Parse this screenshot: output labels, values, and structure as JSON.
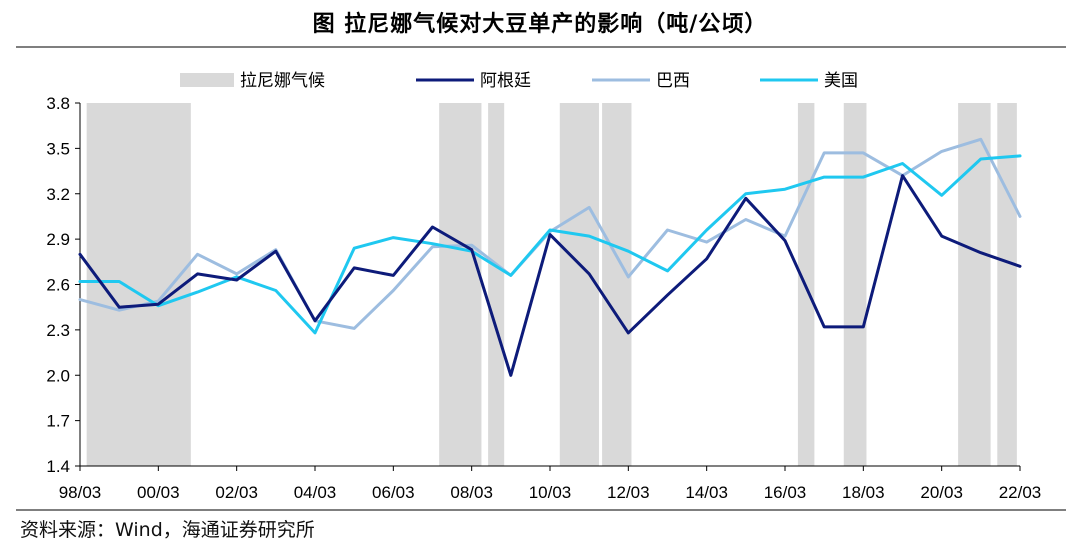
{
  "title": "图  拉尼娜气候对大豆单产的影响（吨/公顷）",
  "source": "资料来源：Wind，海通证券研究所",
  "chart_data": {
    "type": "line",
    "title": "图  拉尼娜气候对大豆单产的影响（吨/公顷）",
    "xlabel": "",
    "ylabel": "",
    "ylim": [
      1.4,
      3.8
    ],
    "yticks": [
      1.4,
      1.7,
      2.0,
      2.3,
      2.6,
      2.9,
      3.2,
      3.5,
      3.8
    ],
    "ytick_labels": [
      "1.4",
      "1.7",
      "2.0",
      "2.3",
      "2.6",
      "2.9",
      "3.2",
      "3.5",
      "3.8"
    ],
    "xlim": [
      1998.25,
      2022.25
    ],
    "xticks": [
      1998.25,
      2000.25,
      2002.25,
      2004.25,
      2006.25,
      2008.25,
      2010.25,
      2012.25,
      2014.25,
      2016.25,
      2018.25,
      2020.25,
      2022.25
    ],
    "xtick_labels": [
      "98/03",
      "00/03",
      "02/03",
      "04/03",
      "06/03",
      "08/03",
      "10/03",
      "12/03",
      "14/03",
      "16/03",
      "18/03",
      "20/03",
      "22/03"
    ],
    "legend_position": "top",
    "legend": [
      "拉尼娜气候",
      "阿根廷",
      "巴西",
      "美国"
    ],
    "shaded_periods_name": "拉尼娜气候",
    "shaded_periods": [
      [
        1998.42,
        2001.08
      ],
      [
        2007.42,
        2008.5
      ],
      [
        2008.67,
        2009.08
      ],
      [
        2010.5,
        2011.5
      ],
      [
        2011.58,
        2012.33
      ],
      [
        2016.58,
        2017.0
      ],
      [
        2017.75,
        2018.33
      ],
      [
        2020.67,
        2021.5
      ],
      [
        2021.67,
        2022.17
      ]
    ],
    "series": [
      {
        "name": "阿根廷",
        "color": "#0d1b7a",
        "x": [
          1998.25,
          1999.25,
          2000.25,
          2001.25,
          2002.25,
          2003.25,
          2004.25,
          2005.25,
          2006.25,
          2007.25,
          2008.25,
          2009.25,
          2010.25,
          2011.25,
          2012.25,
          2013.25,
          2014.25,
          2015.25,
          2016.25,
          2017.25,
          2018.25,
          2019.25,
          2020.25,
          2021.25,
          2022.25
        ],
        "values": [
          2.8,
          2.45,
          2.47,
          2.67,
          2.63,
          2.82,
          2.36,
          2.71,
          2.66,
          2.98,
          2.83,
          2.0,
          2.93,
          2.67,
          2.28,
          2.53,
          2.77,
          3.17,
          2.89,
          2.32,
          2.32,
          3.32,
          2.92,
          2.81,
          2.72
        ]
      },
      {
        "name": "巴西",
        "color": "#9dbde0",
        "x": [
          1998.25,
          1999.25,
          2000.25,
          2001.25,
          2002.25,
          2003.25,
          2004.25,
          2005.25,
          2006.25,
          2007.25,
          2008.25,
          2009.25,
          2010.25,
          2011.25,
          2012.25,
          2013.25,
          2014.25,
          2015.25,
          2016.25,
          2017.25,
          2018.25,
          2019.25,
          2020.25,
          2021.25,
          2022.25
        ],
        "values": [
          2.5,
          2.43,
          2.49,
          2.8,
          2.67,
          2.83,
          2.36,
          2.31,
          2.56,
          2.85,
          2.86,
          2.66,
          2.95,
          3.11,
          2.65,
          2.96,
          2.88,
          3.03,
          2.92,
          3.47,
          3.47,
          3.32,
          3.48,
          3.56,
          3.05
        ]
      },
      {
        "name": "美国",
        "color": "#1fc8f0",
        "x": [
          1998.25,
          1999.25,
          2000.25,
          2001.25,
          2002.25,
          2003.25,
          2004.25,
          2005.25,
          2006.25,
          2007.25,
          2008.25,
          2009.25,
          2010.25,
          2011.25,
          2012.25,
          2013.25,
          2014.25,
          2015.25,
          2016.25,
          2017.25,
          2018.25,
          2019.25,
          2020.25,
          2021.25,
          2022.25
        ],
        "values": [
          2.62,
          2.62,
          2.46,
          2.55,
          2.65,
          2.56,
          2.28,
          2.84,
          2.91,
          2.87,
          2.82,
          2.66,
          2.96,
          2.92,
          2.82,
          2.69,
          2.96,
          3.2,
          3.23,
          3.31,
          3.31,
          3.4,
          3.19,
          3.43,
          3.45
        ]
      }
    ]
  }
}
